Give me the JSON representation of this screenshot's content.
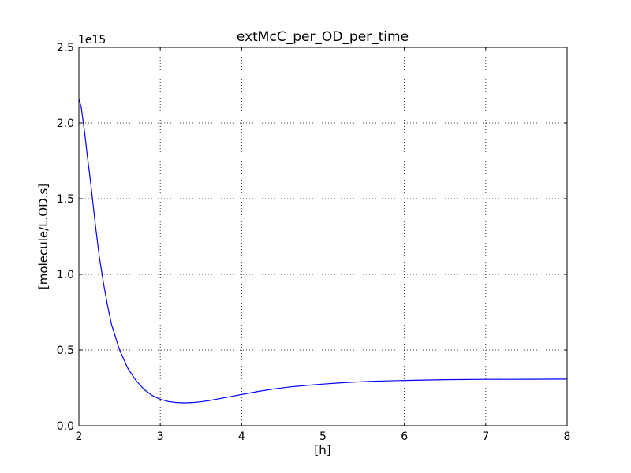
{
  "chart_data": {
    "type": "line",
    "title": "extMcC_per_OD_per_time",
    "xlabel": "[h]",
    "ylabel": "[molecule/L.OD.s]",
    "y_offset_label": "1e15",
    "xlim": [
      2,
      8
    ],
    "ylim": [
      0.0,
      2.5
    ],
    "x_ticks": [
      "2",
      "3",
      "4",
      "5",
      "6",
      "7",
      "8"
    ],
    "y_ticks": [
      "0.0",
      "0.5",
      "1.0",
      "1.5",
      "2.0",
      "2.5"
    ],
    "grid": true,
    "series": [
      {
        "color": "#0000ff",
        "x": [
          2.0,
          2.03,
          2.07,
          2.1,
          2.15,
          2.2,
          2.25,
          2.3,
          2.35,
          2.4,
          2.5,
          2.6,
          2.7,
          2.8,
          2.9,
          3.0,
          3.1,
          3.2,
          3.3,
          3.4,
          3.5,
          3.6,
          3.8,
          4.0,
          4.2,
          4.4,
          4.6,
          4.8,
          5.0,
          5.3,
          5.6,
          6.0,
          6.5,
          7.0,
          7.5,
          8.0
        ],
        "y": [
          2.16,
          2.1,
          1.94,
          1.8,
          1.58,
          1.34,
          1.12,
          0.95,
          0.8,
          0.67,
          0.5,
          0.38,
          0.3,
          0.24,
          0.2,
          0.175,
          0.16,
          0.153,
          0.151,
          0.153,
          0.158,
          0.166,
          0.186,
          0.206,
          0.226,
          0.243,
          0.256,
          0.266,
          0.275,
          0.286,
          0.293,
          0.299,
          0.304,
          0.306,
          0.307,
          0.308
        ]
      }
    ]
  }
}
